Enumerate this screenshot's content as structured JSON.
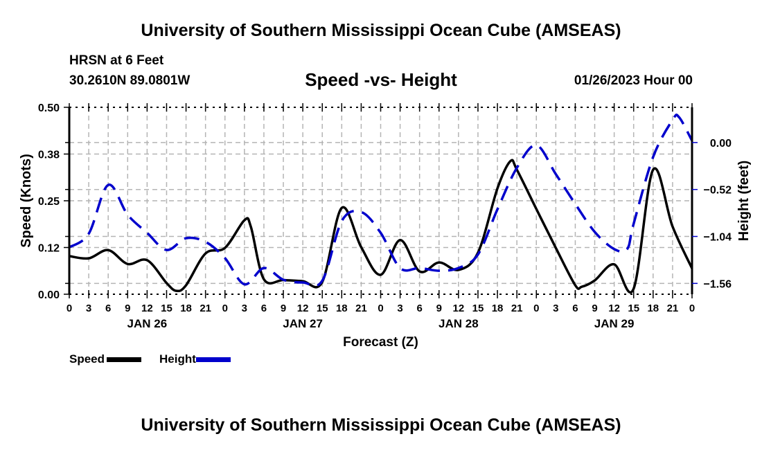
{
  "header": {
    "title": "University of Southern Mississippi Ocean Cube (AMSEAS)",
    "station": "HRSN at 6 Feet",
    "coordinates": "30.2610N  89.0801W",
    "subtitle": "Speed -vs- Height",
    "run_time": "01/26/2023 Hour 00"
  },
  "footer": {
    "title": "University of Southern Mississippi Ocean Cube (AMSEAS)"
  },
  "legend": {
    "speed_label": "Speed",
    "height_label": "Height"
  },
  "colors": {
    "speed": "#000000",
    "height": "#0000cc",
    "grid": "#b4b4b4"
  },
  "chart_data": {
    "type": "line",
    "title": "Speed -vs- Height",
    "xlabel": "Forecast (Z)",
    "ylabel": "Speed (Knots)",
    "y2label": "Height (feet)",
    "xlim": [
      0,
      96
    ],
    "ylim": [
      0,
      0.5
    ],
    "y2lim": [
      -1.68,
      0.39
    ],
    "grid": true,
    "legend_position": "bottom-left",
    "x_tick_labels": [
      "0",
      "3",
      "6",
      "9",
      "12",
      "15",
      "18",
      "21",
      "0",
      "3",
      "6",
      "9",
      "12",
      "15",
      "18",
      "21",
      "0",
      "3",
      "6",
      "9",
      "12",
      "15",
      "18",
      "21",
      "0",
      "3",
      "6",
      "9",
      "12",
      "15",
      "18",
      "21",
      "0"
    ],
    "x_ticks_hours": [
      0,
      3,
      6,
      9,
      12,
      15,
      18,
      21,
      24,
      27,
      30,
      33,
      36,
      39,
      42,
      45,
      48,
      51,
      54,
      57,
      60,
      63,
      66,
      69,
      72,
      75,
      78,
      81,
      84,
      87,
      90,
      93,
      96
    ],
    "date_labels": [
      {
        "label": "JAN 26",
        "hour": 12
      },
      {
        "label": "JAN 27",
        "hour": 36
      },
      {
        "label": "JAN 28",
        "hour": 60
      },
      {
        "label": "JAN 29",
        "hour": 84
      }
    ],
    "y_ticks": [
      0.0,
      0.125,
      0.25,
      0.375,
      0.5
    ],
    "y_tick_labels": [
      "0.00",
      "0.12",
      "0.25",
      "0.38",
      "0.50"
    ],
    "y2_ticks": [
      0.0,
      -0.52,
      -1.04,
      -1.56
    ],
    "y2_tick_labels": [
      "0.00",
      "−0.52",
      "−1.04",
      "−1.56"
    ],
    "series": [
      {
        "name": "Speed",
        "axis": "left",
        "style": "solid",
        "x": [
          0,
          3,
          6,
          9,
          12,
          15,
          16.5,
          18,
          21,
          24,
          27,
          28,
          30,
          33,
          36,
          39,
          42,
          45,
          48,
          51,
          54,
          57,
          60,
          63,
          66,
          68,
          69,
          72,
          75,
          78,
          79,
          81,
          84,
          87,
          90,
          93,
          96
        ],
        "values": [
          0.102,
          0.096,
          0.118,
          0.081,
          0.091,
          0.03,
          0.009,
          0.024,
          0.109,
          0.124,
          0.198,
          0.18,
          0.04,
          0.038,
          0.035,
          0.033,
          0.231,
          0.126,
          0.052,
          0.145,
          0.061,
          0.085,
          0.065,
          0.111,
          0.283,
          0.356,
          0.333,
          0.228,
          0.124,
          0.024,
          0.02,
          0.037,
          0.08,
          0.015,
          0.333,
          0.181,
          0.069
        ]
      },
      {
        "name": "Height",
        "axis": "right",
        "style": "dashed",
        "x": [
          0,
          3,
          6,
          9,
          12,
          15,
          18,
          21,
          24,
          27,
          30,
          33,
          36,
          39,
          42,
          45,
          48,
          51,
          54,
          57,
          60,
          63,
          66,
          69,
          72,
          75,
          78,
          81,
          84,
          86,
          87,
          90,
          93,
          94,
          96
        ],
        "values": [
          -1.16,
          -1.01,
          -0.47,
          -0.8,
          -1.0,
          -1.19,
          -1.06,
          -1.1,
          -1.28,
          -1.57,
          -1.39,
          -1.52,
          -1.55,
          -1.53,
          -0.87,
          -0.77,
          -1.0,
          -1.39,
          -1.39,
          -1.42,
          -1.39,
          -1.24,
          -0.74,
          -0.28,
          -0.03,
          -0.35,
          -0.68,
          -0.99,
          -1.18,
          -1.18,
          -0.9,
          -0.16,
          0.25,
          0.28,
          0.02
        ]
      }
    ]
  }
}
